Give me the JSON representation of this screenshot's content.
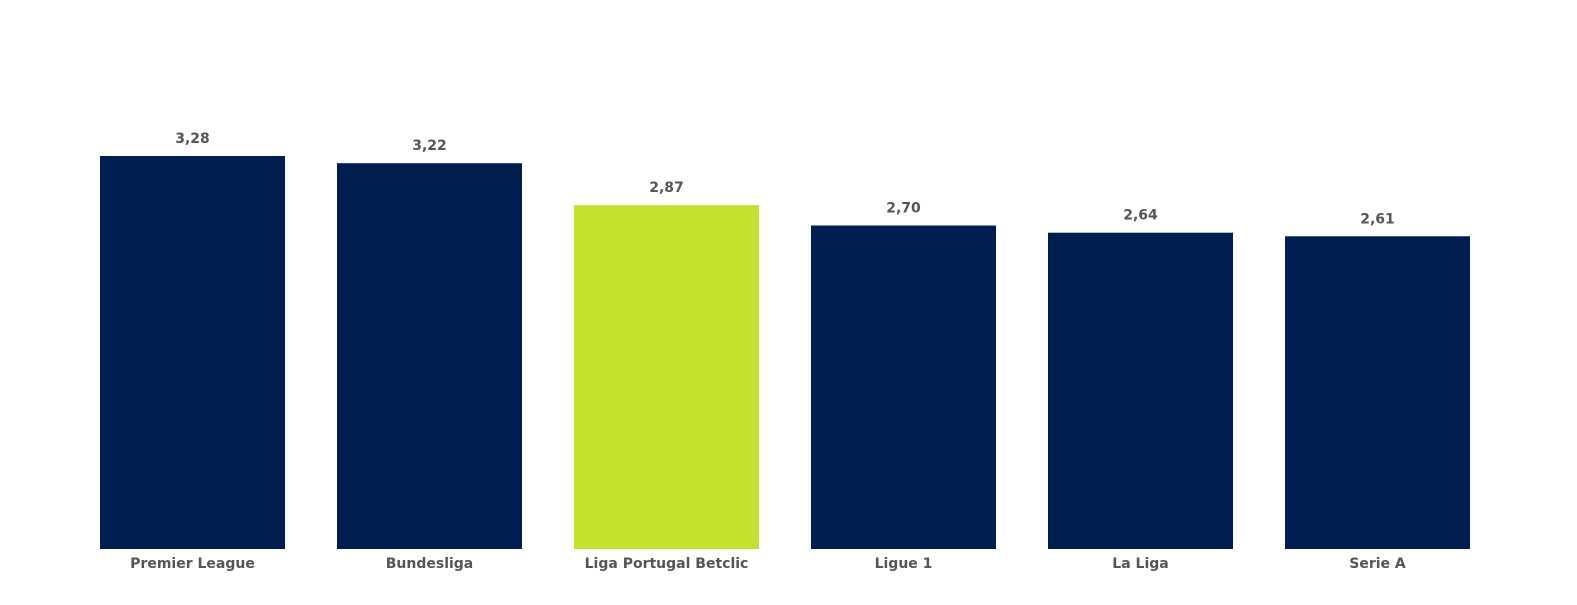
{
  "chart_data": {
    "type": "bar",
    "categories": [
      "Premier League",
      "Bundesliga",
      "Liga Portugal Betclic",
      "Ligue 1",
      "La Liga",
      "Serie A"
    ],
    "values": [
      3.28,
      3.22,
      2.87,
      2.7,
      2.64,
      2.61
    ],
    "value_labels": [
      "3,28",
      "3,22",
      "2,87",
      "2,70",
      "2,64",
      "2,61"
    ],
    "colors": [
      "#001e50",
      "#001e50",
      "#c5e12e",
      "#001e50",
      "#001e50",
      "#001e50"
    ]
  }
}
